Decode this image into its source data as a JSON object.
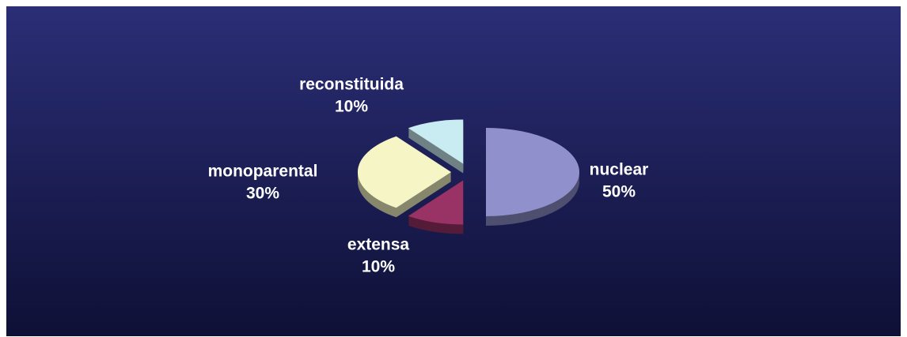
{
  "chart_data": {
    "type": "pie",
    "categories": [
      "nuclear",
      "extensa",
      "monoparental",
      "reconstituida"
    ],
    "values": [
      50,
      10,
      30,
      10
    ],
    "value_labels": [
      "50%",
      "10%",
      "30%",
      "10%"
    ],
    "colors": [
      "#9090cc",
      "#993366",
      "#f5f5c6",
      "#c9ebf2"
    ]
  }
}
